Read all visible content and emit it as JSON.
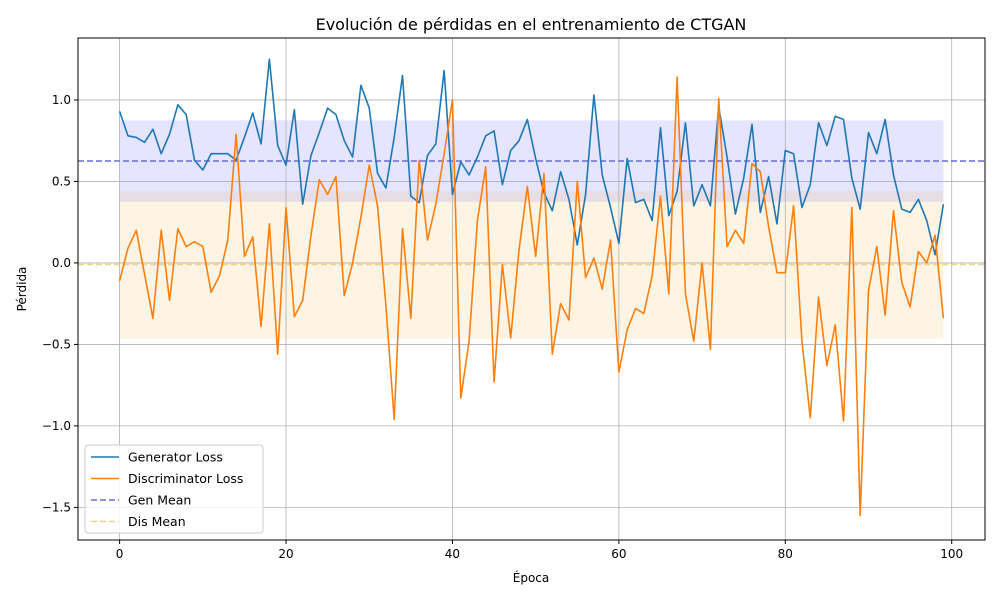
{
  "chart_data": {
    "type": "line",
    "title": "Evolución de pérdidas en el entrenamiento de CTGAN",
    "xlabel": "Época",
    "ylabel": "Pérdida",
    "xlim": [
      -5,
      104
    ],
    "ylim": [
      -1.7,
      1.38
    ],
    "xticks": [
      0,
      20,
      40,
      60,
      80,
      100
    ],
    "xtick_labels": [
      "0",
      "20",
      "40",
      "60",
      "80",
      "100"
    ],
    "yticks": [
      -1.5,
      -1.0,
      -0.5,
      0.0,
      0.5,
      1.0
    ],
    "ytick_labels": [
      "−1.5",
      "−1.0",
      "−0.5",
      "0.0",
      "0.5",
      "1.0"
    ],
    "grid": true,
    "legend_position": "lower-left",
    "bands": [
      {
        "series": "Generator Loss",
        "y0": 0.375,
        "y1": 0.875,
        "x0": 0,
        "x1": 99,
        "color": "#0000ff",
        "opacity": 0.1
      },
      {
        "series": "Discriminator Loss",
        "y0": -0.465,
        "y1": 0.44,
        "x0": 0,
        "x1": 99,
        "color": "#f5a623",
        "opacity": 0.12
      }
    ],
    "series": [
      {
        "name": "Generator Loss",
        "color": "#1f77b4",
        "style": "solid",
        "x": [
          0,
          1,
          2,
          3,
          4,
          5,
          6,
          7,
          8,
          9,
          10,
          11,
          12,
          13,
          14,
          15,
          16,
          17,
          18,
          19,
          20,
          21,
          22,
          23,
          24,
          25,
          26,
          27,
          28,
          29,
          30,
          31,
          32,
          33,
          34,
          35,
          36,
          37,
          38,
          39,
          40,
          41,
          42,
          43,
          44,
          45,
          46,
          47,
          48,
          49,
          50,
          51,
          52,
          53,
          54,
          55,
          56,
          57,
          58,
          59,
          60,
          61,
          62,
          63,
          64,
          65,
          66,
          67,
          68,
          69,
          70,
          71,
          72,
          73,
          74,
          75,
          76,
          77,
          78,
          79,
          80,
          81,
          82,
          83,
          84,
          85,
          86,
          87,
          88,
          89,
          90,
          91,
          92,
          93,
          94,
          95,
          96,
          97,
          98,
          99
        ],
        "values": [
          0.93,
          0.78,
          0.77,
          0.74,
          0.82,
          0.67,
          0.79,
          0.97,
          0.91,
          0.63,
          0.57,
          0.67,
          0.67,
          0.67,
          0.63,
          0.77,
          0.92,
          0.73,
          1.25,
          0.72,
          0.6,
          0.94,
          0.36,
          0.66,
          0.8,
          0.95,
          0.91,
          0.75,
          0.65,
          1.09,
          0.95,
          0.55,
          0.46,
          0.77,
          1.15,
          0.41,
          0.37,
          0.66,
          0.73,
          1.18,
          0.42,
          0.62,
          0.54,
          0.65,
          0.78,
          0.81,
          0.48,
          0.69,
          0.75,
          0.88,
          0.64,
          0.43,
          0.32,
          0.56,
          0.39,
          0.11,
          0.42,
          1.03,
          0.54,
          0.34,
          0.12,
          0.64,
          0.37,
          0.39,
          0.26,
          0.83,
          0.29,
          0.44,
          0.86,
          0.35,
          0.48,
          0.35,
          0.96,
          0.65,
          0.3,
          0.52,
          0.85,
          0.31,
          0.53,
          0.24,
          0.69,
          0.67,
          0.34,
          0.48,
          0.86,
          0.72,
          0.9,
          0.88,
          0.52,
          0.33,
          0.8,
          0.67,
          0.88,
          0.54,
          0.33,
          0.31,
          0.39,
          0.26,
          0.05,
          0.36
        ]
      },
      {
        "name": "Discriminator Loss",
        "color": "#ff7f0e",
        "style": "solid",
        "x": [
          0,
          1,
          2,
          3,
          4,
          5,
          6,
          7,
          8,
          9,
          10,
          11,
          12,
          13,
          14,
          15,
          16,
          17,
          18,
          19,
          20,
          21,
          22,
          23,
          24,
          25,
          26,
          27,
          28,
          29,
          30,
          31,
          32,
          33,
          34,
          35,
          36,
          37,
          38,
          39,
          40,
          41,
          42,
          43,
          44,
          45,
          46,
          47,
          48,
          49,
          50,
          51,
          52,
          53,
          54,
          55,
          56,
          57,
          58,
          59,
          60,
          61,
          62,
          63,
          64,
          65,
          66,
          67,
          68,
          69,
          70,
          71,
          72,
          73,
          74,
          75,
          76,
          77,
          78,
          79,
          80,
          81,
          82,
          83,
          84,
          85,
          86,
          87,
          88,
          89,
          90,
          91,
          92,
          93,
          94,
          95,
          96,
          97,
          98,
          99
        ],
        "values": [
          -0.11,
          0.09,
          0.2,
          -0.07,
          -0.34,
          0.2,
          -0.23,
          0.21,
          0.1,
          0.13,
          0.1,
          -0.18,
          -0.08,
          0.14,
          0.79,
          0.04,
          0.16,
          -0.39,
          0.24,
          -0.56,
          0.34,
          -0.33,
          -0.23,
          0.17,
          0.51,
          0.42,
          0.53,
          -0.2,
          0.0,
          0.28,
          0.6,
          0.35,
          -0.26,
          -0.96,
          0.21,
          -0.34,
          0.63,
          0.14,
          0.36,
          0.67,
          1.0,
          -0.83,
          -0.48,
          0.26,
          0.59,
          -0.73,
          -0.01,
          -0.46,
          0.08,
          0.47,
          0.04,
          0.55,
          -0.56,
          -0.25,
          -0.35,
          0.5,
          -0.09,
          0.03,
          -0.16,
          0.14,
          -0.67,
          -0.41,
          -0.28,
          -0.31,
          -0.08,
          0.41,
          -0.19,
          1.14,
          -0.19,
          -0.48,
          0.0,
          -0.53,
          1.01,
          0.1,
          0.2,
          0.12,
          0.61,
          0.56,
          0.22,
          -0.06,
          -0.06,
          0.35,
          -0.48,
          -0.95,
          -0.21,
          -0.63,
          -0.38,
          -0.97,
          0.34,
          -1.55,
          -0.17,
          0.1,
          -0.32,
          0.32,
          -0.12,
          -0.27,
          0.07,
          0.0,
          0.17,
          -0.34
        ]
      },
      {
        "name": "Gen Mean",
        "color": "#6b6bd6",
        "style": "dashed",
        "constant": 0.625
      },
      {
        "name": "Dis Mean",
        "color": "#f3d28a",
        "style": "dashed",
        "constant": -0.01
      }
    ]
  }
}
